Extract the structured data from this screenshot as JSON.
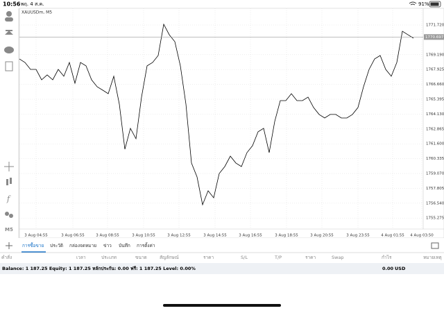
{
  "status": {
    "time": "10:56",
    "date": "พฤ. 4 ส.ค.",
    "battery": "91%"
  },
  "chart_data": {
    "type": "line",
    "title": "XAUUSDm, M5",
    "color": "#000000",
    "grid": true,
    "xlim": [
      0,
      72.75
    ],
    "xticks": [
      {
        "value": 3,
        "label": "3 Aug 04:55"
      },
      {
        "value": 9.625,
        "label": "3 Aug 06:55"
      },
      {
        "value": 15.875,
        "label": "3 Aug 08:55"
      },
      {
        "value": 22.375,
        "label": "3 Aug 10:55"
      },
      {
        "value": 28.75,
        "label": "3 Aug 12:55"
      },
      {
        "value": 35.25,
        "label": "3 Aug 14:55"
      },
      {
        "value": 41.625,
        "label": "3 Aug 16:55"
      },
      {
        "value": 48.125,
        "label": "3 Aug 18:55"
      },
      {
        "value": 54.5,
        "label": "3 Aug 20:55"
      },
      {
        "value": 61,
        "label": "3 Aug 23:55"
      },
      {
        "value": 67.25,
        "label": "4 Aug 01:55"
      },
      {
        "value": 72.5,
        "label": "4 Aug 03:50"
      }
    ],
    "ylim": [
      1754.34,
      1773.14
    ],
    "yticks": [
      {
        "value": 1771.72,
        "label": "1771.720"
      },
      {
        "value": 1769.19,
        "label": "1769.190"
      },
      {
        "value": 1767.925,
        "label": "1767.925"
      },
      {
        "value": 1766.66,
        "label": "1766.660"
      },
      {
        "value": 1765.395,
        "label": "1765.395"
      },
      {
        "value": 1764.13,
        "label": "1764.130"
      },
      {
        "value": 1762.865,
        "label": "1762.865"
      },
      {
        "value": 1761.6,
        "label": "1761.600"
      },
      {
        "value": 1760.335,
        "label": "1760.335"
      },
      {
        "value": 1759.07,
        "label": "1759.070"
      },
      {
        "value": 1757.805,
        "label": "1757.805"
      },
      {
        "value": 1756.54,
        "label": "1756.540"
      },
      {
        "value": 1755.275,
        "label": "1755.275"
      }
    ],
    "price_line": 1770.697,
    "values": [
      1768.83,
      1768.53,
      1767.94,
      1767.94,
      1767.05,
      1767.47,
      1767.05,
      1767.94,
      1767.35,
      1768.53,
      1766.76,
      1768.53,
      1768.24,
      1767.05,
      1766.46,
      1766.17,
      1765.87,
      1767.35,
      1764.98,
      1761.14,
      1762.92,
      1762.03,
      1765.58,
      1768.24,
      1768.53,
      1769.12,
      1771.78,
      1770.89,
      1770.3,
      1768.24,
      1764.98,
      1759.96,
      1758.78,
      1756.41,
      1757.6,
      1757.0,
      1759.07,
      1759.66,
      1760.55,
      1759.96,
      1759.66,
      1760.85,
      1761.44,
      1762.62,
      1762.92,
      1760.85,
      1763.51,
      1765.28,
      1765.28,
      1765.87,
      1765.28,
      1765.28,
      1765.58,
      1764.69,
      1764.1,
      1763.8,
      1764.1,
      1764.1,
      1763.8,
      1763.8,
      1764.1,
      1764.69,
      1766.46,
      1767.94,
      1768.83,
      1769.12,
      1767.94,
      1767.35,
      1768.53,
      1771.19,
      1770.89,
      1770.6
    ]
  },
  "tabs": [
    "การซื้อขาย",
    "ประวัติ",
    "กล่องจดหมาย",
    "ข่าว",
    "บันทึก",
    "การตั้งค่า"
  ],
  "columns": [
    "คำสั่ง",
    "เวลา",
    "ประเภท",
    "ขนาด",
    "สัญลักษณ์",
    "ราคา",
    "S/L",
    "T/P",
    "ราคา",
    "Swap",
    "กำไร",
    "หมายเหตุ"
  ],
  "summary": {
    "text": "Balance: 1 187.25 Equity: 1 187.25 หลักประกัน: 0.00 ฟรี: 1 187.25 Level: 0.00%",
    "profit": "0.00",
    "currency": "USD"
  },
  "toolbar_label": "M5"
}
